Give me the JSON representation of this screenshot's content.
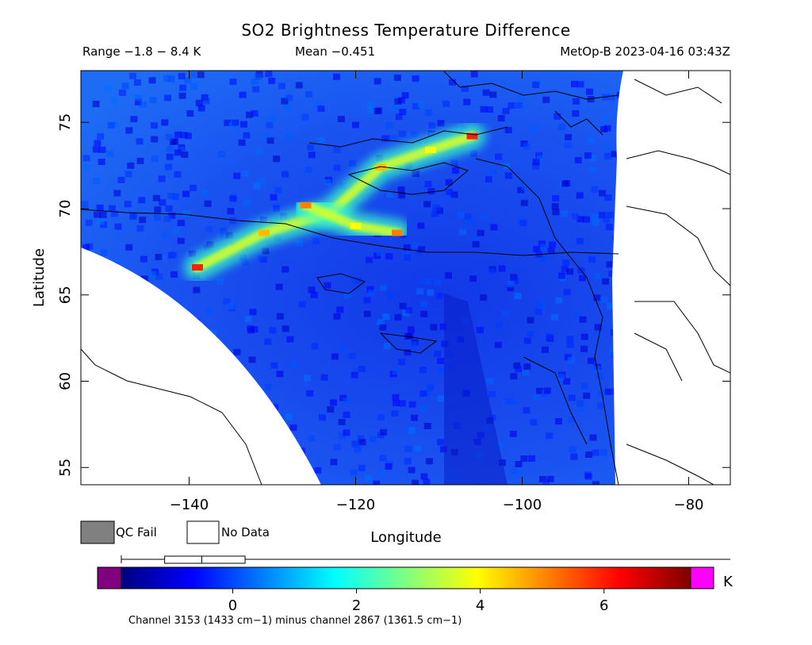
{
  "header": {
    "title": "SO2 Brightness Temperature Difference",
    "range": "Range −1.8 − 8.4 K",
    "mean": "Mean −0.451",
    "satellite": "MetOp-B 2023-04-16 03:43Z"
  },
  "chart_data": {
    "type": "heatmap",
    "title": "SO2 Brightness Temperature Difference",
    "xlabel": "Longitude",
    "ylabel": "Latitude",
    "xlim": [
      -153,
      -75
    ],
    "ylim": [
      54,
      78
    ],
    "x_ticks": [
      -140,
      -120,
      -100,
      -80
    ],
    "y_ticks": [
      55,
      60,
      65,
      70,
      75
    ],
    "value_range": [
      -1.8,
      8.4
    ],
    "mean": -0.451,
    "units": "K",
    "grid": false,
    "plumes": [
      {
        "name": "main-plume",
        "points": [
          [
            -139,
            66.6
          ],
          [
            -131,
            68.6
          ],
          [
            -123,
            69.8
          ],
          [
            -117,
            72.4
          ],
          [
            -111,
            73.4
          ],
          [
            -106,
            74.2
          ]
        ],
        "peak": 7.0
      },
      {
        "name": "secondary-plume",
        "points": [
          [
            -126,
            70.2
          ],
          [
            -120,
            69.0
          ],
          [
            -115,
            68.6
          ]
        ],
        "peak": 6.0
      }
    ],
    "legend": {
      "qc_fail": "QC Fail",
      "no_data": "No Data"
    },
    "colorbar": {
      "ticks": [
        0,
        2,
        4,
        6
      ],
      "min": -1.8,
      "max": 7.4,
      "unit": "K",
      "underflow_color": "#800080",
      "overflow_color": "#ff00ff",
      "stops": [
        "#00007f",
        "#0000ff",
        "#007fff",
        "#00ffff",
        "#7fff7f",
        "#ffff00",
        "#ff7f00",
        "#ff0000",
        "#7f0000"
      ],
      "box_marker": [
        -1.1,
        -0.5,
        0.2
      ]
    },
    "footnote": "Channel 3153 (1433 cm−1) minus channel 2867 (1361.5 cm−1)"
  },
  "colors": {
    "background_field": "#1a4fe0",
    "no_data": "#ffffff",
    "qc_fail": "#808080",
    "coast": "#000000"
  }
}
